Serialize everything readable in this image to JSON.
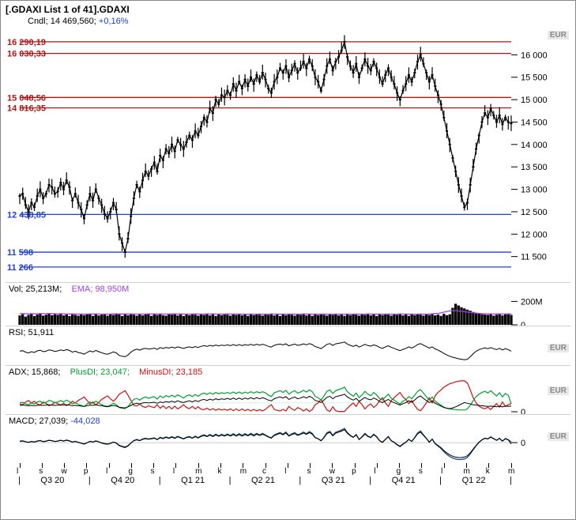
{
  "title": "[.GDAXI List 1 of 41].GDAXI",
  "subtitle_prefix": "Cndl; 14 469,560; ",
  "subtitle_change": "+0,16%",
  "colors": {
    "title": "#000000",
    "change_positive": "#2040d0",
    "red_line": "#b01515",
    "blue_line": "#2040d0",
    "price": "#000000",
    "volume_bar": "#000000",
    "ema": "#a040e0",
    "rsi": "#000000",
    "adx": "#000000",
    "plusdi": "#00a030",
    "minusdi": "#d01010",
    "macd": "#1a4a7a",
    "grey": "#888888",
    "border": "#888888"
  },
  "main_chart": {
    "currency": "EUR",
    "ylim": [
      11000,
      16500
    ],
    "yticks": [
      11500,
      12000,
      12500,
      13000,
      13500,
      14000,
      14500,
      15000,
      15500,
      16000
    ],
    "ytick_labels": [
      "11 500",
      "12 000",
      "12 500",
      "13 000",
      "13 500",
      "14 000",
      "14 500",
      "15 000",
      "15 500",
      "16 000"
    ],
    "red_lines": [
      {
        "value": 16290.19,
        "label": "16 290,19"
      },
      {
        "value": 16030.33,
        "label": "16 030,33"
      },
      {
        "value": 15048.56,
        "label": "15 048,56"
      },
      {
        "value": 14816.35,
        "label": "14 816,35"
      }
    ],
    "blue_lines": [
      {
        "value": 12438.85,
        "label": "12 438,85"
      },
      {
        "value": 11598,
        "label": "11 598"
      },
      {
        "value": 11266,
        "label": "11 266"
      }
    ],
    "price_series": [
      12850,
      12900,
      12650,
      12500,
      12700,
      12600,
      12850,
      13000,
      12800,
      12900,
      13100,
      13050,
      12900,
      12950,
      13150,
      13000,
      13200,
      13050,
      12750,
      12900,
      12700,
      12550,
      12350,
      12650,
      12900,
      12750,
      13000,
      12800,
      12650,
      12450,
      12350,
      12500,
      12700,
      12550,
      12000,
      11800,
      11600,
      11900,
      12400,
      12800,
      13100,
      12950,
      13200,
      13400,
      13300,
      13450,
      13600,
      13400,
      13750,
      13650,
      13900,
      13800,
      14000,
      13850,
      14100,
      14000,
      13900,
      14050,
      14200,
      14100,
      14300,
      14200,
      14400,
      14600,
      14500,
      14800,
      14700,
      15000,
      14900,
      15100,
      15050,
      15200,
      15100,
      15350,
      15200,
      15400,
      15250,
      15450,
      15300,
      15500,
      15350,
      15550,
      15400,
      15600,
      15450,
      15250,
      15150,
      15400,
      15500,
      15700,
      15600,
      15750,
      15500,
      15650,
      15800,
      15600,
      15700,
      15850,
      15700,
      15900,
      15750,
      15500,
      15400,
      15200,
      15450,
      15750,
      15900,
      15650,
      15850,
      15950,
      16100,
      16290,
      15950,
      15750,
      15600,
      15800,
      15500,
      15700,
      15900,
      15750,
      15650,
      15850,
      15700,
      15500,
      15350,
      15550,
      15700,
      15500,
      15350,
      15150,
      15000,
      15200,
      15350,
      15550,
      15400,
      15600,
      15850,
      16000,
      15800,
      15600,
      15400,
      15550,
      15300,
      15100,
      14900,
      14600,
      14300,
      14000,
      13700,
      13400,
      13100,
      12850,
      12600,
      12700,
      13100,
      13500,
      13900,
      14200,
      14500,
      14700,
      14600,
      14800,
      14650,
      14500,
      14650,
      14450,
      14600,
      14500,
      14470
    ]
  },
  "volume": {
    "label_prefix": "Vol; 25,213M;",
    "ema_label": "EMA; 98,950M",
    "ymax": 250,
    "yticks": [
      0,
      200
    ],
    "ytick_labels": [
      "0",
      "200M"
    ],
    "series": [
      80,
      90,
      70,
      85,
      95,
      75,
      88,
      92,
      78,
      86,
      94,
      82,
      90,
      85,
      95,
      80,
      88,
      75,
      92,
      85,
      78,
      90,
      82,
      95,
      88,
      76,
      94,
      80,
      86,
      92,
      78,
      90,
      84,
      96,
      88,
      75,
      94,
      82,
      90,
      86,
      78,
      92,
      80,
      95,
      88,
      76,
      94,
      84,
      90,
      82,
      78,
      92,
      86,
      96,
      80,
      88,
      75,
      94,
      82,
      90,
      86,
      78,
      92,
      84,
      96,
      80,
      88,
      76,
      94,
      82,
      90,
      86,
      78,
      92,
      84,
      95,
      80,
      88,
      76,
      94,
      82,
      90,
      86,
      78,
      92,
      84,
      96,
      80,
      88,
      75,
      94,
      82,
      90,
      86,
      78,
      92,
      84,
      96,
      80,
      88,
      76,
      94,
      82,
      90,
      86,
      78,
      92,
      84,
      95,
      80,
      88,
      76,
      94,
      82,
      90,
      86,
      78,
      92,
      84,
      96,
      80,
      88,
      75,
      94,
      82,
      90,
      86,
      78,
      92,
      84,
      96,
      80,
      88,
      76,
      94,
      82,
      90,
      86,
      78,
      92,
      84,
      95,
      80,
      88,
      76,
      94,
      82,
      90,
      145,
      180,
      165,
      150,
      140,
      130,
      120,
      110,
      100,
      95,
      90,
      88,
      85,
      92,
      78,
      86,
      94,
      80,
      88,
      90,
      85
    ],
    "ema_series": [
      95,
      96,
      95,
      94,
      95,
      94,
      95,
      96,
      95,
      96,
      97,
      96,
      95,
      94,
      95,
      94,
      93,
      92,
      93,
      92,
      91,
      92,
      91,
      92,
      93,
      92,
      93,
      92,
      91,
      92,
      91,
      92,
      93,
      94,
      93,
      92,
      93,
      92,
      93,
      92,
      91,
      92,
      91,
      92,
      93,
      92,
      93,
      92,
      93,
      92,
      91,
      92,
      93,
      94,
      92,
      93,
      91,
      92,
      91,
      92,
      93,
      91,
      92,
      91,
      94,
      92,
      93,
      91,
      92,
      91,
      92,
      93,
      91,
      92,
      91,
      92,
      90,
      91,
      89,
      92,
      90,
      91,
      92,
      90,
      91,
      90,
      93,
      91,
      92,
      90,
      92,
      90,
      91,
      92,
      90,
      91,
      90,
      93,
      91,
      92,
      90,
      92,
      90,
      91,
      92,
      90,
      91,
      90,
      92,
      90,
      91,
      89,
      92,
      90,
      91,
      92,
      90,
      91,
      90,
      93,
      91,
      92,
      90,
      92,
      90,
      91,
      92,
      90,
      91,
      90,
      93,
      91,
      92,
      90,
      92,
      90,
      91,
      92,
      90,
      91,
      92,
      94,
      96,
      98,
      102,
      108,
      114,
      118,
      120,
      120,
      118,
      115,
      112,
      108,
      105,
      102,
      100,
      98,
      96,
      95,
      94,
      94,
      92,
      93,
      94,
      92,
      93,
      94,
      93
    ]
  },
  "rsi": {
    "label": "RSI; 51,911",
    "currency": "EUR",
    "series": [
      52,
      54,
      48,
      45,
      50,
      47,
      53,
      56,
      50,
      52,
      57,
      55,
      51,
      53,
      57,
      54,
      58,
      55,
      48,
      52,
      47,
      44,
      40,
      47,
      53,
      49,
      55,
      50,
      46,
      42,
      40,
      44,
      49,
      45,
      35,
      32,
      30,
      37,
      48,
      56,
      60,
      56,
      61,
      63,
      60,
      62,
      64,
      59,
      66,
      63,
      67,
      64,
      68,
      64,
      69,
      66,
      63,
      67,
      69,
      66,
      70,
      67,
      71,
      74,
      71,
      75,
      72,
      76,
      73,
      76,
      74,
      77,
      74,
      78,
      74,
      78,
      74,
      78,
      75,
      79,
      75,
      79,
      76,
      79,
      76,
      71,
      68,
      75,
      78,
      80,
      77,
      81,
      73,
      77,
      80,
      75,
      77,
      81,
      77,
      82,
      78,
      70,
      67,
      62,
      70,
      79,
      82,
      75,
      81,
      83,
      85,
      88,
      80,
      75,
      71,
      76,
      68,
      73,
      79,
      74,
      72,
      77,
      73,
      67,
      63,
      69,
      73,
      67,
      63,
      58,
      54,
      59,
      63,
      69,
      64,
      70,
      78,
      82,
      76,
      70,
      64,
      69,
      61,
      56,
      50,
      43,
      37,
      32,
      28,
      25,
      22,
      20,
      18,
      20,
      30,
      42,
      52,
      58,
      62,
      65,
      62,
      66,
      62,
      58,
      63,
      57,
      62,
      58,
      52
    ]
  },
  "adx": {
    "label_adx": "ADX; 15,868;",
    "label_plusdi": "PlusDI; 23,047;",
    "label_minusdi": "MinusDI; 23,185",
    "currency": "EUR",
    "ytick_labels": [
      "0"
    ],
    "adx_series": [
      18,
      19,
      18,
      17,
      18,
      17,
      18,
      19,
      18,
      19,
      20,
      19,
      18,
      19,
      20,
      19,
      20,
      19,
      17,
      18,
      17,
      16,
      15,
      17,
      19,
      18,
      20,
      18,
      17,
      15,
      14,
      16,
      18,
      16,
      13,
      12,
      11,
      14,
      18,
      22,
      24,
      22,
      25,
      26,
      25,
      26,
      27,
      24,
      28,
      26,
      29,
      27,
      30,
      27,
      31,
      28,
      26,
      29,
      31,
      28,
      32,
      29,
      33,
      35,
      32,
      36,
      33,
      37,
      34,
      37,
      35,
      38,
      35,
      39,
      35,
      39,
      35,
      39,
      36,
      40,
      36,
      40,
      37,
      40,
      37,
      33,
      31,
      37,
      40,
      42,
      39,
      43,
      35,
      39,
      42,
      37,
      39,
      43,
      39,
      44,
      40,
      32,
      30,
      26,
      33,
      41,
      44,
      37,
      43,
      45,
      47,
      50,
      42,
      37,
      33,
      38,
      30,
      35,
      41,
      36,
      34,
      39,
      35,
      29,
      26,
      31,
      35,
      29,
      26,
      22,
      19,
      23,
      26,
      31,
      27,
      33,
      41,
      45,
      38,
      32,
      26,
      31,
      24,
      20,
      16,
      12,
      10,
      9,
      11,
      14,
      18,
      22,
      26,
      24,
      22,
      20,
      19,
      18,
      17,
      16,
      15,
      16,
      15,
      14,
      16,
      14,
      16,
      15,
      16
    ],
    "plusdi_series": [
      25,
      27,
      22,
      20,
      25,
      22,
      28,
      30,
      24,
      27,
      32,
      30,
      25,
      28,
      32,
      28,
      33,
      29,
      22,
      26,
      21,
      18,
      15,
      22,
      28,
      24,
      30,
      25,
      20,
      17,
      15,
      19,
      24,
      20,
      12,
      10,
      9,
      15,
      25,
      35,
      38,
      33,
      39,
      42,
      38,
      41,
      43,
      36,
      45,
      40,
      46,
      42,
      47,
      42,
      48,
      44,
      39,
      45,
      48,
      43,
      49,
      44,
      50,
      53,
      49,
      54,
      50,
      55,
      51,
      54,
      52,
      55,
      52,
      56,
      52,
      56,
      52,
      56,
      53,
      57,
      53,
      57,
      54,
      57,
      54,
      47,
      43,
      54,
      57,
      60,
      55,
      61,
      50,
      56,
      60,
      53,
      56,
      61,
      56,
      62,
      57,
      44,
      40,
      33,
      45,
      58,
      62,
      52,
      60,
      63,
      66,
      70,
      57,
      50,
      44,
      53,
      40,
      48,
      58,
      50,
      46,
      55,
      48,
      38,
      33,
      42,
      50,
      38,
      33,
      27,
      22,
      30,
      35,
      43,
      37,
      47,
      58,
      63,
      53,
      43,
      33,
      42,
      30,
      24,
      19,
      13,
      10,
      8,
      7,
      6,
      5,
      5,
      5,
      8,
      18,
      32,
      43,
      50,
      55,
      58,
      53,
      60,
      52,
      45,
      54,
      42,
      52,
      47,
      23
    ],
    "minusdi_series": [
      22,
      20,
      28,
      32,
      25,
      30,
      22,
      19,
      28,
      24,
      17,
      20,
      27,
      23,
      18,
      24,
      17,
      22,
      30,
      25,
      32,
      37,
      42,
      32,
      22,
      28,
      19,
      27,
      35,
      40,
      45,
      37,
      30,
      38,
      50,
      55,
      60,
      47,
      32,
      18,
      16,
      22,
      15,
      12,
      17,
      14,
      12,
      20,
      10,
      17,
      9,
      15,
      8,
      16,
      8,
      13,
      20,
      12,
      9,
      15,
      8,
      14,
      7,
      6,
      10,
      5,
      9,
      4,
      8,
      5,
      7,
      4,
      8,
      3,
      8,
      3,
      8,
      3,
      7,
      2,
      7,
      2,
      6,
      2,
      7,
      14,
      20,
      7,
      4,
      2,
      7,
      2,
      15,
      8,
      4,
      12,
      8,
      2,
      8,
      1,
      6,
      20,
      25,
      35,
      20,
      5,
      1,
      14,
      3,
      1,
      1,
      1,
      10,
      18,
      25,
      15,
      30,
      20,
      8,
      17,
      22,
      12,
      19,
      32,
      40,
      25,
      15,
      32,
      40,
      48,
      55,
      42,
      35,
      23,
      32,
      18,
      7,
      3,
      13,
      25,
      40,
      25,
      45,
      55,
      62,
      70,
      75,
      80,
      82,
      85,
      87,
      88,
      88,
      82,
      62,
      40,
      25,
      16,
      11,
      8,
      13,
      6,
      15,
      23,
      13,
      28,
      15,
      20,
      23
    ]
  },
  "macd": {
    "label_prefix": "MACD; 27,039; ",
    "label_value": "-44,028",
    "currency": "EUR",
    "ytick_labels": [
      "0"
    ],
    "series1": [
      50,
      60,
      30,
      10,
      40,
      20,
      55,
      70,
      35,
      50,
      80,
      65,
      40,
      55,
      80,
      55,
      85,
      60,
      15,
      45,
      10,
      -20,
      -50,
      -5,
      45,
      20,
      60,
      25,
      -15,
      -40,
      -55,
      -25,
      15,
      -15,
      -100,
      -140,
      -165,
      -110,
      -15,
      70,
      105,
      70,
      120,
      145,
      120,
      140,
      160,
      105,
      180,
      145,
      190,
      155,
      200,
      155,
      210,
      170,
      130,
      180,
      205,
      155,
      215,
      165,
      225,
      260,
      215,
      270,
      220,
      280,
      225,
      275,
      235,
      285,
      235,
      295,
      235,
      295,
      235,
      295,
      245,
      305,
      245,
      305,
      255,
      305,
      255,
      195,
      160,
      255,
      300,
      335,
      280,
      350,
      230,
      290,
      330,
      260,
      295,
      350,
      295,
      365,
      305,
      165,
      130,
      60,
      170,
      330,
      375,
      240,
      345,
      380,
      420,
      470,
      330,
      240,
      180,
      270,
      105,
      195,
      310,
      215,
      175,
      280,
      195,
      65,
      5,
      110,
      205,
      60,
      5,
      -75,
      -135,
      -55,
      10,
      110,
      40,
      170,
      320,
      385,
      260,
      140,
      10,
      115,
      -35,
      -115,
      -195,
      -300,
      -390,
      -460,
      -510,
      -545,
      -560,
      -555,
      -540,
      -490,
      -375,
      -235,
      -105,
      10,
      95,
      150,
      125,
      190,
      135,
      75,
      145,
      50,
      135,
      95,
      27
    ],
    "series2": [
      40,
      52,
      28,
      12,
      35,
      18,
      48,
      62,
      32,
      45,
      72,
      60,
      38,
      50,
      72,
      50,
      76,
      55,
      18,
      40,
      12,
      -15,
      -42,
      -2,
      40,
      22,
      53,
      25,
      -10,
      -32,
      -46,
      -18,
      18,
      -10,
      -85,
      -122,
      -145,
      -98,
      -10,
      62,
      92,
      65,
      108,
      130,
      110,
      128,
      145,
      98,
      162,
      132,
      172,
      142,
      180,
      142,
      190,
      155,
      120,
      165,
      185,
      145,
      195,
      152,
      205,
      235,
      198,
      245,
      202,
      255,
      208,
      250,
      216,
      260,
      218,
      268,
      218,
      268,
      218,
      268,
      225,
      278,
      225,
      278,
      235,
      278,
      235,
      182,
      150,
      235,
      275,
      305,
      258,
      318,
      215,
      268,
      302,
      242,
      272,
      320,
      272,
      332,
      280,
      160,
      128,
      65,
      160,
      302,
      340,
      225,
      315,
      348,
      382,
      428,
      305,
      225,
      172,
      250,
      105,
      182,
      282,
      202,
      168,
      258,
      185,
      70,
      15,
      108,
      190,
      65,
      15,
      -60,
      -115,
      -42,
      18,
      105,
      42,
      158,
      290,
      348,
      242,
      135,
      20,
      112,
      -20,
      -95,
      -168,
      -262,
      -342,
      -405,
      -450,
      -480,
      -495,
      -492,
      -478,
      -435,
      -335,
      -212,
      -92,
      18,
      92,
      140,
      120,
      178,
      128,
      75,
      138,
      55,
      128,
      92,
      -44
    ]
  },
  "xaxis": {
    "minor_letters": [
      "l",
      "s",
      "w",
      "p",
      "l",
      "g",
      "s",
      "l",
      "m",
      "k",
      "m",
      "c",
      "l",
      "s",
      "w",
      "p",
      "l",
      "g",
      "s",
      "l",
      "m",
      "k",
      "m"
    ],
    "major_labels": [
      "Q3 20",
      "Q4 20",
      "Q1 21",
      "Q2 21",
      "Q3 21",
      "Q4 21",
      "Q1 22"
    ]
  }
}
